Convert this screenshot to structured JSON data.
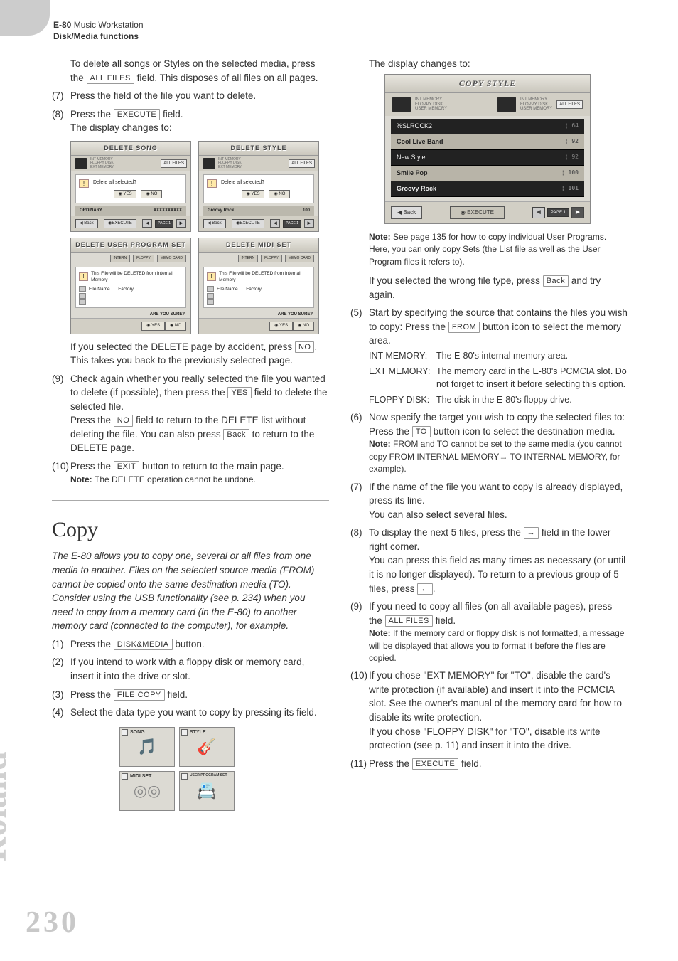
{
  "header": {
    "product": "E-80",
    "desc": "Music Workstation",
    "section": "Disk/Media functions"
  },
  "left": {
    "p1a": "To delete all songs or Styles on the selected media, press the ",
    "p1_btn": "ALL FILES",
    "p1b": " field. This disposes of all files on all pages.",
    "s7n": "(7)",
    "s7": "Press the field of the file you want to delete.",
    "s8n": "(8)",
    "s8a": "Press the ",
    "s8_btn": "EXECUTE",
    "s8b": " field.",
    "s8_sub": "The display changes to:",
    "mock1_title": "DELETE SONG",
    "mock2_title": "DELETE STYLE",
    "mock3_title": "DELETE USER PROGRAM SET",
    "mock4_title": "DELETE MIDI SET",
    "mock_q": "Delete all selected?",
    "mock_yes": "YES",
    "mock_no": "NO",
    "mock_from": "FROM",
    "mock_allfiles": "ALL FILES",
    "mock_back": "Back",
    "mock_exec": "EXECUTE",
    "mock_page": "PAGE\n1",
    "mock_ord": "ORDINARY",
    "mock_groovy": "Groovy Rock",
    "mock_100": "100",
    "mock_xxx": "XXXXXXXXXX",
    "mock_warn34": "This File will be DELETED from Internal Memory",
    "mock_fn": "File Name",
    "mock_fac": "Factory",
    "mock_sure": "ARE YOU SURE?",
    "mock_tab1": "INTERN",
    "mock_tab2": "FLOPPY",
    "mock_tab3": "MEMO CARD",
    "p2a": "If you selected the DELETE page by accident, press ",
    "p2_btn": "NO",
    "p2b": ". This takes you back to the previously selected page.",
    "s9n": "(9)",
    "s9a": "Check again whether you really selected the file you wanted to delete (if possible), then press the ",
    "s9_btn": "YES",
    "s9b": " field to delete the selected file.",
    "s9c": "Press the ",
    "s9_btn2": "NO",
    "s9d": " field to return to the DELETE list without deleting the file. You can also press ",
    "s9_btn3": "Back",
    "s9e": " to return to the DELETE page.",
    "s10n": "(10)",
    "s10a": "Press the ",
    "s10_btn": "EXIT",
    "s10b": " button to return to the main page.",
    "s10_note": "The DELETE operation cannot be undone.",
    "copy_h": "Copy",
    "copy_intro": "The E-80 allows you to copy one, several or all files from one media to another. Files on the selected source media (FROM) cannot be copied onto the same destination media (TO). Consider using the USB functionality (see p. 234) when you need to copy from a memory card (in the E-80) to another memory card (connected to the computer), for example.",
    "c1n": "(1)",
    "c1a": "Press the ",
    "c1_btn": "DISK&MEDIA",
    "c1b": " button.",
    "c2n": "(2)",
    "c2": "If you intend to work with a floppy disk or memory card, insert it into the drive or slot.",
    "c3n": "(3)",
    "c3a": "Press the ",
    "c3_btn": "FILE COPY",
    "c3b": " field.",
    "c4n": "(4)",
    "c4": "Select the data type you want to copy by pressing its field.",
    "ic1": "SONG",
    "ic2": "STYLE",
    "ic3": "MIDI SET",
    "ic4": "USER PROGRAM SET"
  },
  "right": {
    "r1": "The display changes to:",
    "cm_title": "COPY STYLE",
    "cm_rows": [
      {
        "name": "%SLROCK2",
        "num": "64"
      },
      {
        "name": "Cool Live Band",
        "num": "92",
        "bold": true
      },
      {
        "name": "New Style",
        "num": "92"
      },
      {
        "name": "Smile Pop",
        "num": "100",
        "bold": true
      },
      {
        "name": "Groovy Rock",
        "num": "101",
        "bold": true
      }
    ],
    "cm_back": "Back",
    "cm_exec": "EXECUTE",
    "cm_page": "PAGE 1",
    "cm_allfiles": "ALL FILES",
    "cm_ml1": "INT MEMORY",
    "cm_ml2": "FLOPPY DISK",
    "cm_ml3": "USER MEMORY",
    "note1a": "See page 135 for how to copy individual User Programs. Here, you can only copy Sets (the List file as well as the User Program files it refers to).",
    "p_wrong_a": "If you selected the wrong file type, press ",
    "p_wrong_btn": "Back",
    "p_wrong_b": " and try again.",
    "s5n": "(5)",
    "s5a": "Start by specifying the source that contains the files you wish to copy: Press the ",
    "s5_btn": "FROM",
    "s5b": " button icon to select the memory area.",
    "d1_term": "INT MEMORY:",
    "d1": "The E-80's internal memory area.",
    "d2_term": "EXT MEMORY:",
    "d2": "The memory card in the E-80's PCMCIA slot. Do not forget to insert it before selecting this option.",
    "d3_term": "FLOPPY DISK:",
    "d3": "The disk in the E-80's floppy drive.",
    "s6n": "(6)",
    "s6a": "Now specify the target you wish to copy the selected files to: Press the ",
    "s6_btn": "TO",
    "s6b": " button icon to select the destination media.",
    "s6_note": "FROM and TO cannot be set to the same media (you cannot copy FROM INTERNAL MEMORY→ TO INTERNAL MEMORY, for example).",
    "s7n": "(7)",
    "s7a": "If the name of the file you want to copy is already displayed, press its line.",
    "s7b": "You can also select several files.",
    "s8n": "(8)",
    "s8a": "To display the next 5 files, press the ",
    "s8_btn": "→",
    "s8b": " field in the lower right corner.",
    "s8c": "You can press this field as many times as necessary (or until it is no longer displayed). To return to a previous group of 5 files, press ",
    "s8_btn2": "←",
    "s8d": ".",
    "s9n": "(9)",
    "s9a": "If you need to copy all files (on all available pages), press the ",
    "s9_btn": "ALL FILES",
    "s9b": " field.",
    "s9_note": "If the memory card or floppy disk is not formatted, a message will be displayed that allows you to format it before the files are copied.",
    "s10n": "(10)",
    "s10": "If you chose \"EXT MEMORY\" for \"TO\", disable the card's write protection (if available) and insert it into the PCMCIA slot. See the owner's manual of the memory card for how to disable its write protection.",
    "s10b": "If you chose \"FLOPPY DISK\" for \"TO\", disable its write protection (see p. 11) and insert it into the drive.",
    "s11n": "(11)",
    "s11a": "Press the ",
    "s11_btn": "EXECUTE",
    "s11b": " field."
  },
  "note_label": "Note: ",
  "roland": "Roland",
  "pagenum": "230"
}
